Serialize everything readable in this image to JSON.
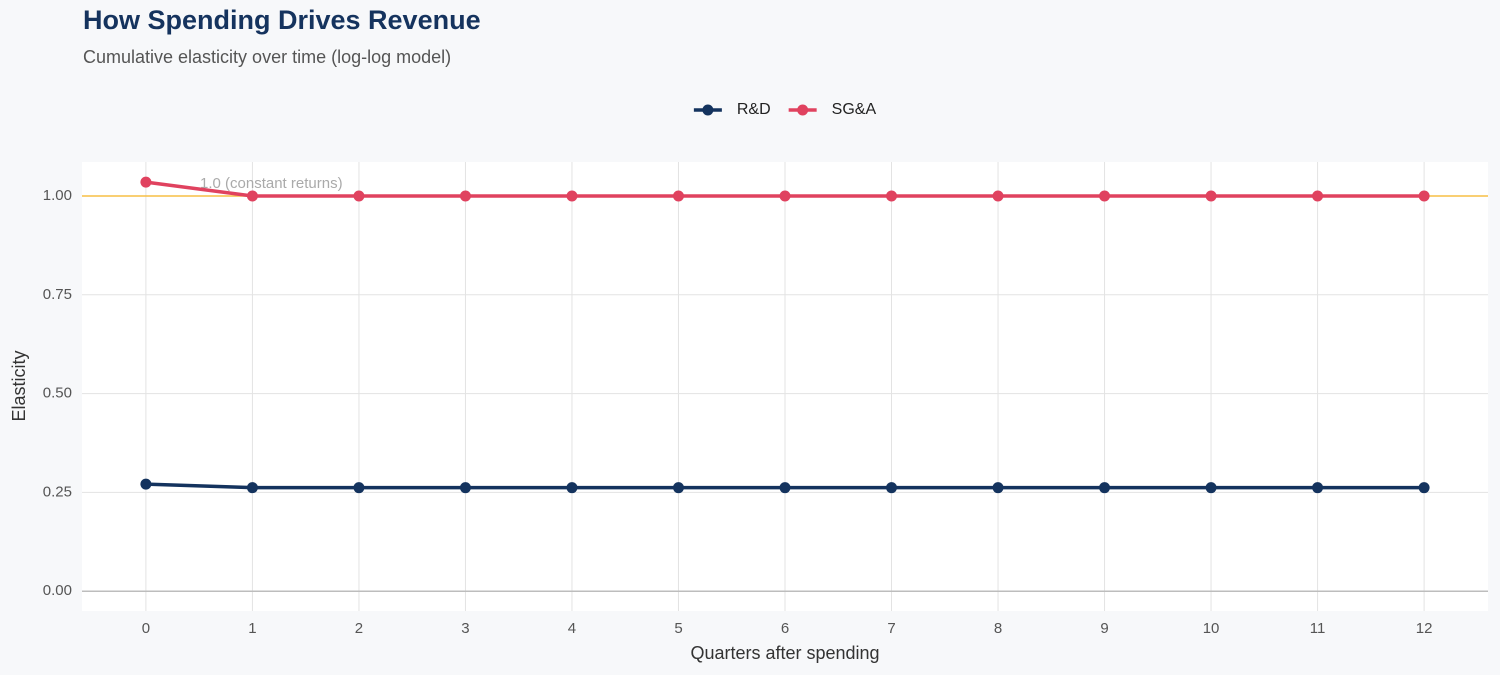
{
  "chart_data": {
    "type": "line",
    "title": "How Spending Drives Revenue",
    "subtitle": "Cumulative elasticity over time (log-log model)",
    "x_label": "Quarters after spending",
    "y_label": "Elasticity",
    "x": [
      0,
      1,
      2,
      3,
      4,
      5,
      6,
      7,
      8,
      9,
      10,
      11,
      12
    ],
    "series": [
      {
        "name": "R&D",
        "color": "#14335e",
        "values": [
          0.271,
          0.262,
          0.262,
          0.262,
          0.262,
          0.262,
          0.262,
          0.262,
          0.262,
          0.262,
          0.262,
          0.262,
          0.262
        ]
      },
      {
        "name": "SG&A",
        "color": "#e0425f",
        "values": [
          1.035,
          1.0,
          1.0,
          1.0,
          1.0,
          1.0,
          1.0,
          1.0,
          1.0,
          1.0,
          1.0,
          1.0,
          1.0
        ]
      }
    ],
    "xlim": [
      -0.6,
      12.6
    ],
    "ylim": [
      -0.05,
      1.086
    ],
    "xticks": [
      0,
      1,
      2,
      3,
      4,
      5,
      6,
      7,
      8,
      9,
      10,
      11,
      12
    ],
    "yticks": [
      {
        "value": 0,
        "label": "0.00"
      },
      {
        "value": 0.25,
        "label": "0.25"
      },
      {
        "value": 0.5,
        "label": "0.50"
      },
      {
        "value": 0.75,
        "label": "0.75"
      },
      {
        "value": 1,
        "label": "1.00"
      }
    ],
    "reference_line": {
      "value": 1,
      "label": "1.0 (constant returns)",
      "color": "#f7bf45"
    },
    "grid": true,
    "legend": "top"
  }
}
